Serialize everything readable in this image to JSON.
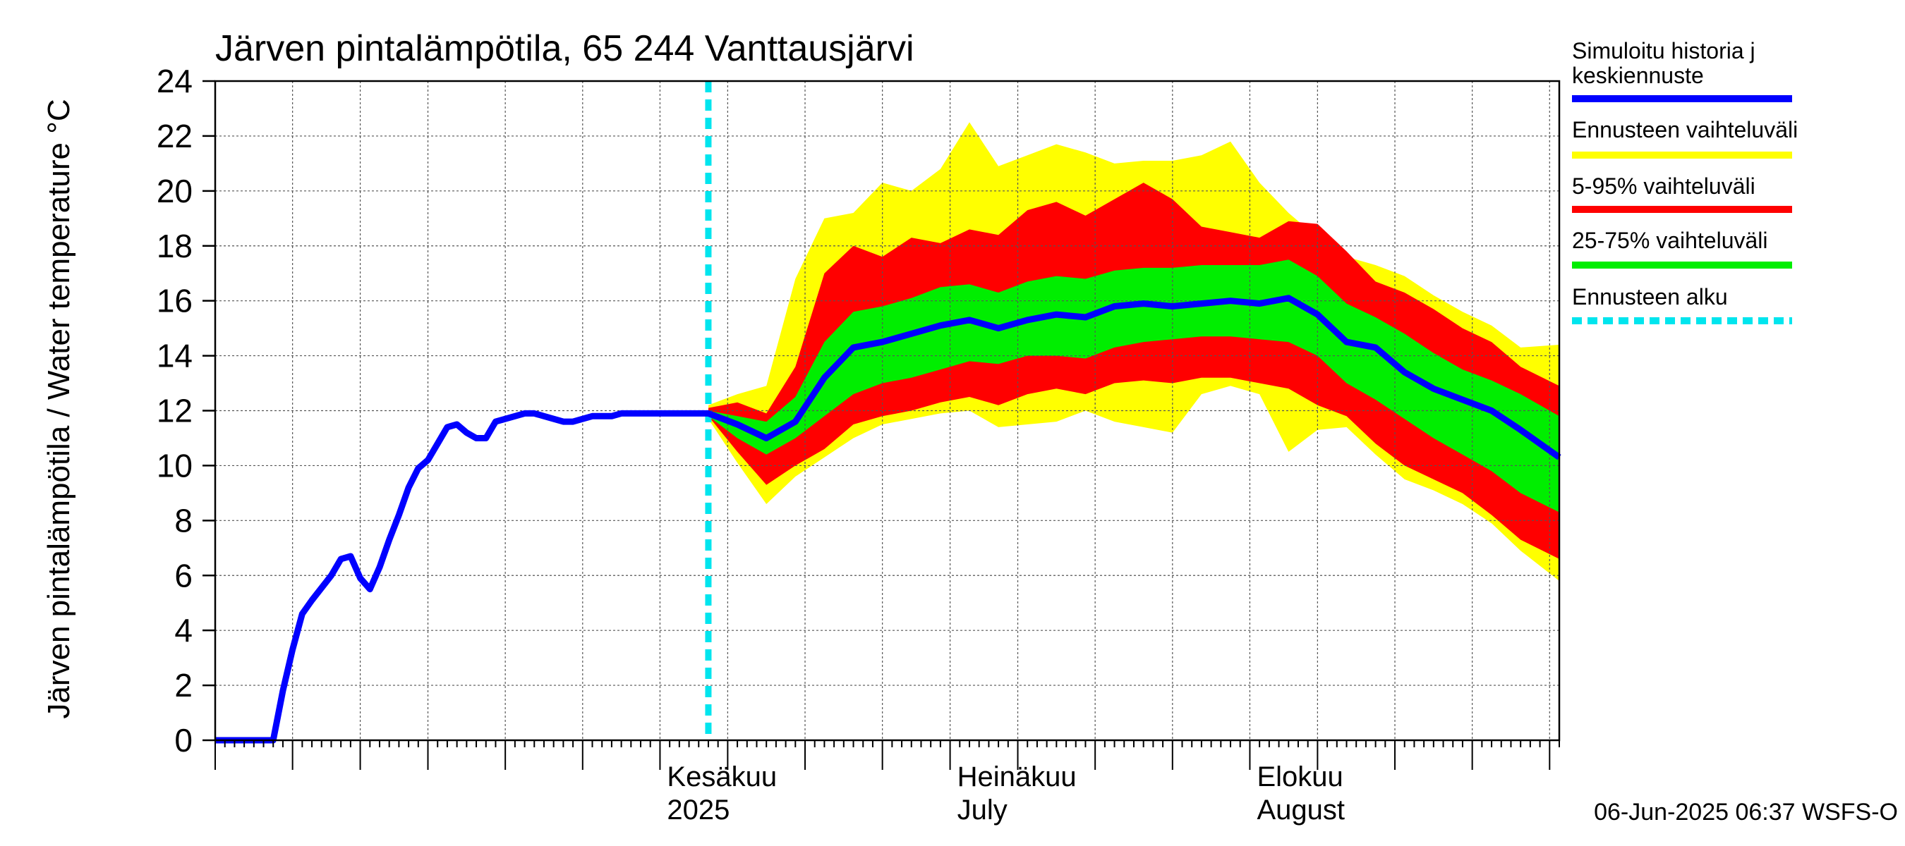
{
  "chart_data": {
    "type": "area",
    "title": "Järven pintalämpötila, 65 244 Vanttausjärvi",
    "ylabel": "Järven pintalämpötila / Water temperature °C",
    "ylim": [
      0,
      24
    ],
    "yticks": [
      0,
      2,
      4,
      6,
      8,
      10,
      12,
      14,
      16,
      18,
      20,
      22,
      24
    ],
    "xlim": [
      "2025-04-16",
      "2025-09-02"
    ],
    "month_labels": [
      {
        "date": "2025-06-01",
        "line1": "Kesäkuu",
        "line2": "2025"
      },
      {
        "date": "2025-07-01",
        "line1": "Heinäkuu",
        "line2": "July"
      },
      {
        "date": "2025-08-01",
        "line1": "Elokuu",
        "line2": "August"
      }
    ],
    "grid": true,
    "forecast_start": "2025-06-06",
    "legend_position": "right",
    "legend": [
      {
        "key": "median",
        "label": "Simuloitu historia ja keskiennuste",
        "color": "#0000ff"
      },
      {
        "key": "range",
        "label": "Ennusteen vaihteluväli",
        "color": "#ffff00"
      },
      {
        "key": "p5_95",
        "label": "5-95% vaihteluväli",
        "color": "#ff0000"
      },
      {
        "key": "p25_75",
        "label": "25-75% vaihteluväli",
        "color": "#00ee00"
      },
      {
        "key": "start",
        "label": "Ennusteen alku",
        "color": "#00e5ee"
      }
    ],
    "history": {
      "x": [
        "2025-04-16",
        "2025-04-19",
        "2025-04-22",
        "2025-04-23",
        "2025-04-24",
        "2025-04-25",
        "2025-04-26",
        "2025-04-28",
        "2025-04-29",
        "2025-04-30",
        "2025-05-01",
        "2025-05-02",
        "2025-05-03",
        "2025-05-04",
        "2025-05-05",
        "2025-05-06",
        "2025-05-07",
        "2025-05-08",
        "2025-05-09",
        "2025-05-10",
        "2025-05-11",
        "2025-05-12",
        "2025-05-13",
        "2025-05-14",
        "2025-05-15",
        "2025-05-16",
        "2025-05-17",
        "2025-05-18",
        "2025-05-19",
        "2025-05-20",
        "2025-05-21",
        "2025-05-22",
        "2025-05-23",
        "2025-05-24",
        "2025-05-25",
        "2025-05-26",
        "2025-05-27",
        "2025-05-28",
        "2025-05-29",
        "2025-05-30",
        "2025-05-31",
        "2025-06-01",
        "2025-06-02",
        "2025-06-03",
        "2025-06-04",
        "2025-06-05",
        "2025-06-06"
      ],
      "values": [
        0,
        0,
        0,
        1.8,
        3.3,
        4.6,
        5.1,
        6.0,
        6.6,
        6.7,
        5.9,
        5.5,
        6.3,
        7.3,
        8.2,
        9.2,
        9.9,
        10.2,
        10.8,
        11.4,
        11.5,
        11.2,
        11.0,
        11.0,
        11.6,
        11.7,
        11.8,
        11.9,
        11.9,
        11.8,
        11.7,
        11.6,
        11.6,
        11.7,
        11.8,
        11.8,
        11.8,
        11.9,
        11.9,
        11.9,
        11.9,
        11.9,
        11.9,
        11.9,
        11.9,
        11.9,
        11.9
      ]
    },
    "forecast": {
      "x": [
        "2025-06-06",
        "2025-06-09",
        "2025-06-12",
        "2025-06-15",
        "2025-06-18",
        "2025-06-21",
        "2025-06-24",
        "2025-06-27",
        "2025-06-30",
        "2025-07-03",
        "2025-07-06",
        "2025-07-09",
        "2025-07-12",
        "2025-07-15",
        "2025-07-18",
        "2025-07-21",
        "2025-07-24",
        "2025-07-27",
        "2025-07-30",
        "2025-08-02",
        "2025-08-05",
        "2025-08-08",
        "2025-08-11",
        "2025-08-14",
        "2025-08-17",
        "2025-08-20",
        "2025-08-23",
        "2025-08-26",
        "2025-08-29",
        "2025-09-02"
      ],
      "median": [
        11.9,
        11.5,
        11.0,
        11.6,
        13.2,
        14.3,
        14.5,
        14.8,
        15.1,
        15.3,
        15.0,
        15.3,
        15.5,
        15.4,
        15.8,
        15.9,
        15.8,
        15.9,
        16.0,
        15.9,
        16.1,
        15.5,
        14.5,
        14.3,
        13.4,
        12.8,
        12.4,
        12.0,
        11.3,
        10.3
      ],
      "p25": [
        11.8,
        11.0,
        10.4,
        11.0,
        11.8,
        12.6,
        13.0,
        13.2,
        13.5,
        13.8,
        13.7,
        14.0,
        14.0,
        13.9,
        14.3,
        14.5,
        14.6,
        14.7,
        14.7,
        14.6,
        14.5,
        14.0,
        13.0,
        12.4,
        11.7,
        11.0,
        10.4,
        9.8,
        9.0,
        8.3
      ],
      "p75": [
        12.0,
        11.8,
        11.6,
        12.5,
        14.5,
        15.6,
        15.8,
        16.1,
        16.5,
        16.6,
        16.3,
        16.7,
        16.9,
        16.8,
        17.1,
        17.2,
        17.2,
        17.3,
        17.3,
        17.3,
        17.5,
        16.9,
        15.9,
        15.4,
        14.8,
        14.1,
        13.5,
        13.1,
        12.6,
        11.8
      ],
      "p5": [
        11.8,
        10.5,
        9.3,
        10.0,
        10.6,
        11.5,
        11.8,
        12.0,
        12.3,
        12.5,
        12.2,
        12.6,
        12.8,
        12.6,
        13.0,
        13.1,
        13.0,
        13.2,
        13.2,
        13.0,
        12.8,
        12.2,
        11.8,
        10.8,
        10.0,
        9.5,
        9.0,
        8.2,
        7.3,
        6.6
      ],
      "p95": [
        12.1,
        12.3,
        11.9,
        13.6,
        17.0,
        18.0,
        17.6,
        18.3,
        18.1,
        18.6,
        18.4,
        19.3,
        19.6,
        19.1,
        19.7,
        20.3,
        19.7,
        18.7,
        18.5,
        18.3,
        18.9,
        18.8,
        17.8,
        16.7,
        16.3,
        15.7,
        15.0,
        14.5,
        13.6,
        12.9
      ],
      "min": [
        11.7,
        10.1,
        8.6,
        9.6,
        10.3,
        11.0,
        11.5,
        11.7,
        11.9,
        12.0,
        11.4,
        11.5,
        11.6,
        12.0,
        11.6,
        11.4,
        11.2,
        12.6,
        12.9,
        12.6,
        10.5,
        11.3,
        11.4,
        10.4,
        9.5,
        9.1,
        8.6,
        7.9,
        6.9,
        5.8
      ],
      "max": [
        12.2,
        12.6,
        12.9,
        16.8,
        19.0,
        19.2,
        20.3,
        20.0,
        20.8,
        22.5,
        20.9,
        21.3,
        21.7,
        21.4,
        21.0,
        21.1,
        21.1,
        21.3,
        21.8,
        20.3,
        19.2,
        18.3,
        17.6,
        17.3,
        16.9,
        16.2,
        15.6,
        15.1,
        14.3,
        14.4
      ]
    }
  },
  "footer": "06-Jun-2025 06:37 WSFS-O"
}
